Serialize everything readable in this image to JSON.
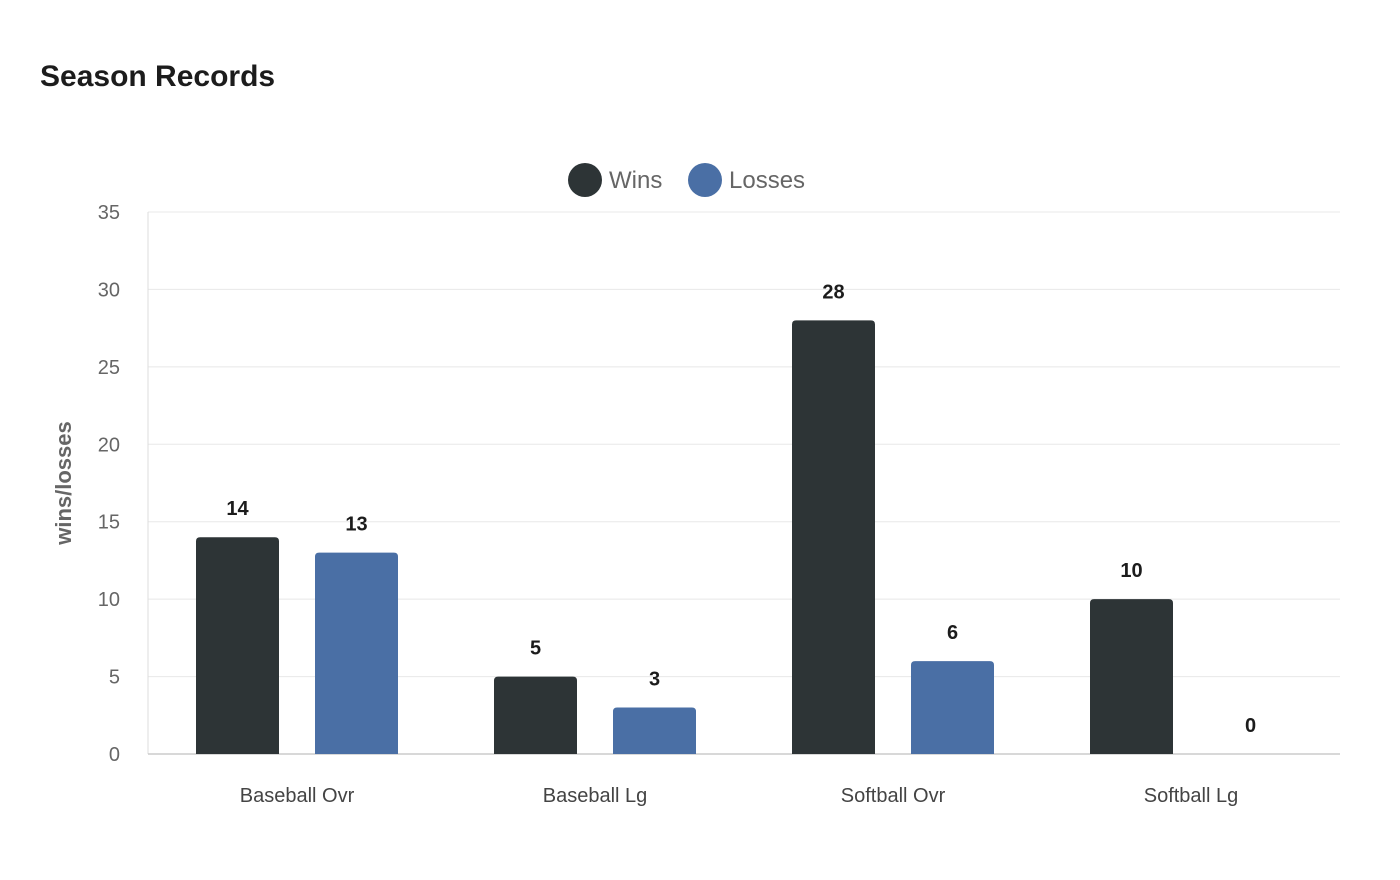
{
  "chart_data": {
    "type": "bar",
    "title": "Season Records",
    "xlabel": "",
    "ylabel": "wins/losses",
    "ylim": [
      0,
      35
    ],
    "yticks": [
      0,
      5,
      10,
      15,
      20,
      25,
      30,
      35
    ],
    "grid": true,
    "legend_position": "top-center",
    "categories": [
      "Baseball Ovr",
      "Baseball Lg",
      "Softball Ovr",
      "Softball Lg"
    ],
    "series": [
      {
        "name": "Wins",
        "color": "#2d3436",
        "values": [
          14,
          5,
          28,
          10
        ]
      },
      {
        "name": "Losses",
        "color": "#4a6fa5",
        "values": [
          13,
          3,
          6,
          0
        ]
      }
    ]
  }
}
